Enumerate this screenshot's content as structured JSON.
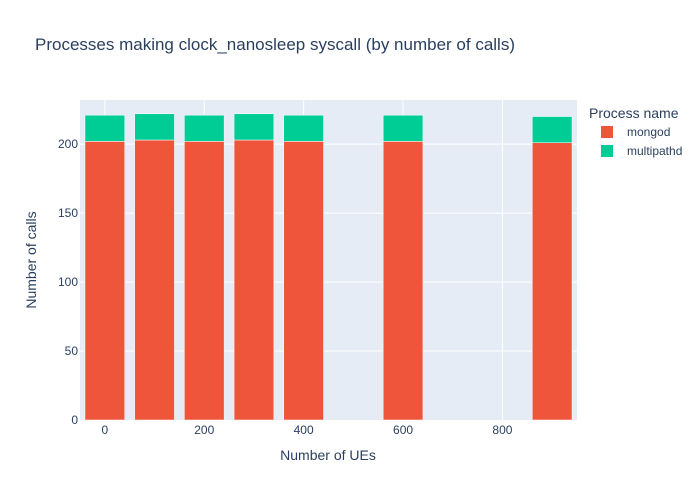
{
  "chart_data": {
    "type": "bar",
    "barmode": "stack",
    "title": "Processes making clock_nanosleep syscall (by number of calls)",
    "xlabel": "Number of UEs",
    "ylabel": "Number of calls",
    "x": [
      0,
      100,
      200,
      300,
      400,
      600,
      900
    ],
    "xlim": [
      -50,
      950
    ],
    "ylim": [
      0,
      232
    ],
    "xticks": [
      0,
      200,
      400,
      600,
      800
    ],
    "yticks": [
      0,
      50,
      100,
      150,
      200
    ],
    "grid": true,
    "legend_title": "Process name",
    "legend_position": "top-right",
    "series": [
      {
        "name": "mongod",
        "color": "#EF553B",
        "values": [
          202,
          203,
          202,
          203,
          202,
          202,
          201
        ]
      },
      {
        "name": "multipathd",
        "color": "#00CC96",
        "values": [
          19,
          19,
          19,
          19,
          19,
          19,
          19
        ]
      }
    ],
    "plot_background": "#E5ECF6"
  }
}
